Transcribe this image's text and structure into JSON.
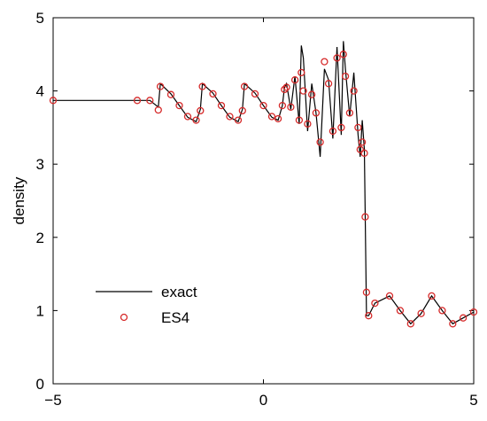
{
  "chart_data": {
    "type": "line",
    "title": "",
    "xlabel": "",
    "ylabel": "density",
    "xlim": [
      -5,
      5
    ],
    "ylim": [
      0,
      5
    ],
    "x_ticks": [
      "−5",
      "0",
      "5"
    ],
    "y_ticks": [
      "0",
      "1",
      "2",
      "3",
      "4",
      "5"
    ],
    "grid": false,
    "legend_position": "bottom-left",
    "series": [
      {
        "name": "exact",
        "style": "line",
        "color": "#000000",
        "x": [
          -5.0,
          -3.0,
          -2.7,
          -2.5,
          -2.45,
          -2.2,
          -2.0,
          -1.8,
          -1.6,
          -1.5,
          -1.45,
          -1.2,
          -1.0,
          -0.8,
          -0.6,
          -0.5,
          -0.45,
          -0.2,
          0.0,
          0.2,
          0.35,
          0.45,
          0.5,
          0.55,
          0.65,
          0.75,
          0.85,
          0.9,
          0.95,
          1.05,
          1.15,
          1.25,
          1.35,
          1.45,
          1.55,
          1.65,
          1.75,
          1.85,
          1.9,
          1.95,
          2.05,
          2.15,
          2.25,
          2.3,
          2.35,
          2.4,
          2.45,
          2.5,
          2.65,
          3.0,
          3.25,
          3.5,
          3.75,
          4.0,
          4.25,
          4.5,
          4.75,
          5.0
        ],
        "y": [
          3.87,
          3.87,
          3.87,
          3.78,
          4.1,
          3.96,
          3.8,
          3.64,
          3.58,
          3.75,
          4.1,
          3.97,
          3.8,
          3.64,
          3.58,
          3.75,
          4.1,
          3.97,
          3.8,
          3.64,
          3.6,
          3.8,
          4.05,
          4.1,
          3.75,
          4.2,
          3.55,
          4.62,
          4.45,
          3.45,
          4.1,
          3.7,
          3.1,
          4.3,
          4.15,
          3.35,
          4.6,
          3.4,
          4.68,
          4.3,
          3.65,
          4.25,
          3.4,
          3.1,
          3.6,
          3.2,
          0.93,
          0.93,
          1.1,
          1.2,
          1.0,
          0.82,
          0.96,
          1.2,
          1.0,
          0.82,
          0.9,
          0.98
        ]
      },
      {
        "name": "ES4",
        "style": "markers",
        "marker": "circle",
        "color": "#d62a2a",
        "x": [
          -5.0,
          -3.0,
          -2.7,
          -2.5,
          -2.45,
          -2.2,
          -2.0,
          -1.8,
          -1.6,
          -1.5,
          -1.45,
          -1.2,
          -1.0,
          -0.8,
          -0.6,
          -0.5,
          -0.45,
          -0.2,
          0.0,
          0.2,
          0.35,
          0.45,
          0.5,
          0.55,
          0.65,
          0.75,
          0.85,
          0.9,
          0.95,
          1.05,
          1.15,
          1.25,
          1.35,
          1.45,
          1.55,
          1.65,
          1.75,
          1.85,
          1.9,
          1.95,
          2.05,
          2.15,
          2.25,
          2.3,
          2.35,
          2.4,
          2.42,
          2.45,
          2.5,
          2.65,
          3.0,
          3.25,
          3.5,
          3.75,
          4.0,
          4.25,
          4.5,
          4.75,
          5.0
        ],
        "y": [
          3.87,
          3.87,
          3.87,
          3.74,
          4.06,
          3.95,
          3.8,
          3.65,
          3.6,
          3.73,
          4.06,
          3.96,
          3.8,
          3.65,
          3.6,
          3.73,
          4.06,
          3.96,
          3.8,
          3.65,
          3.62,
          3.8,
          4.02,
          4.05,
          3.78,
          4.15,
          3.6,
          4.25,
          4.0,
          3.55,
          3.95,
          3.7,
          3.3,
          4.4,
          4.1,
          3.45,
          4.45,
          3.5,
          4.5,
          4.2,
          3.7,
          4.0,
          3.5,
          3.2,
          3.3,
          3.15,
          2.28,
          1.25,
          0.93,
          1.1,
          1.2,
          1.0,
          0.82,
          0.96,
          1.2,
          1.0,
          0.82,
          0.9,
          0.98
        ]
      }
    ]
  }
}
